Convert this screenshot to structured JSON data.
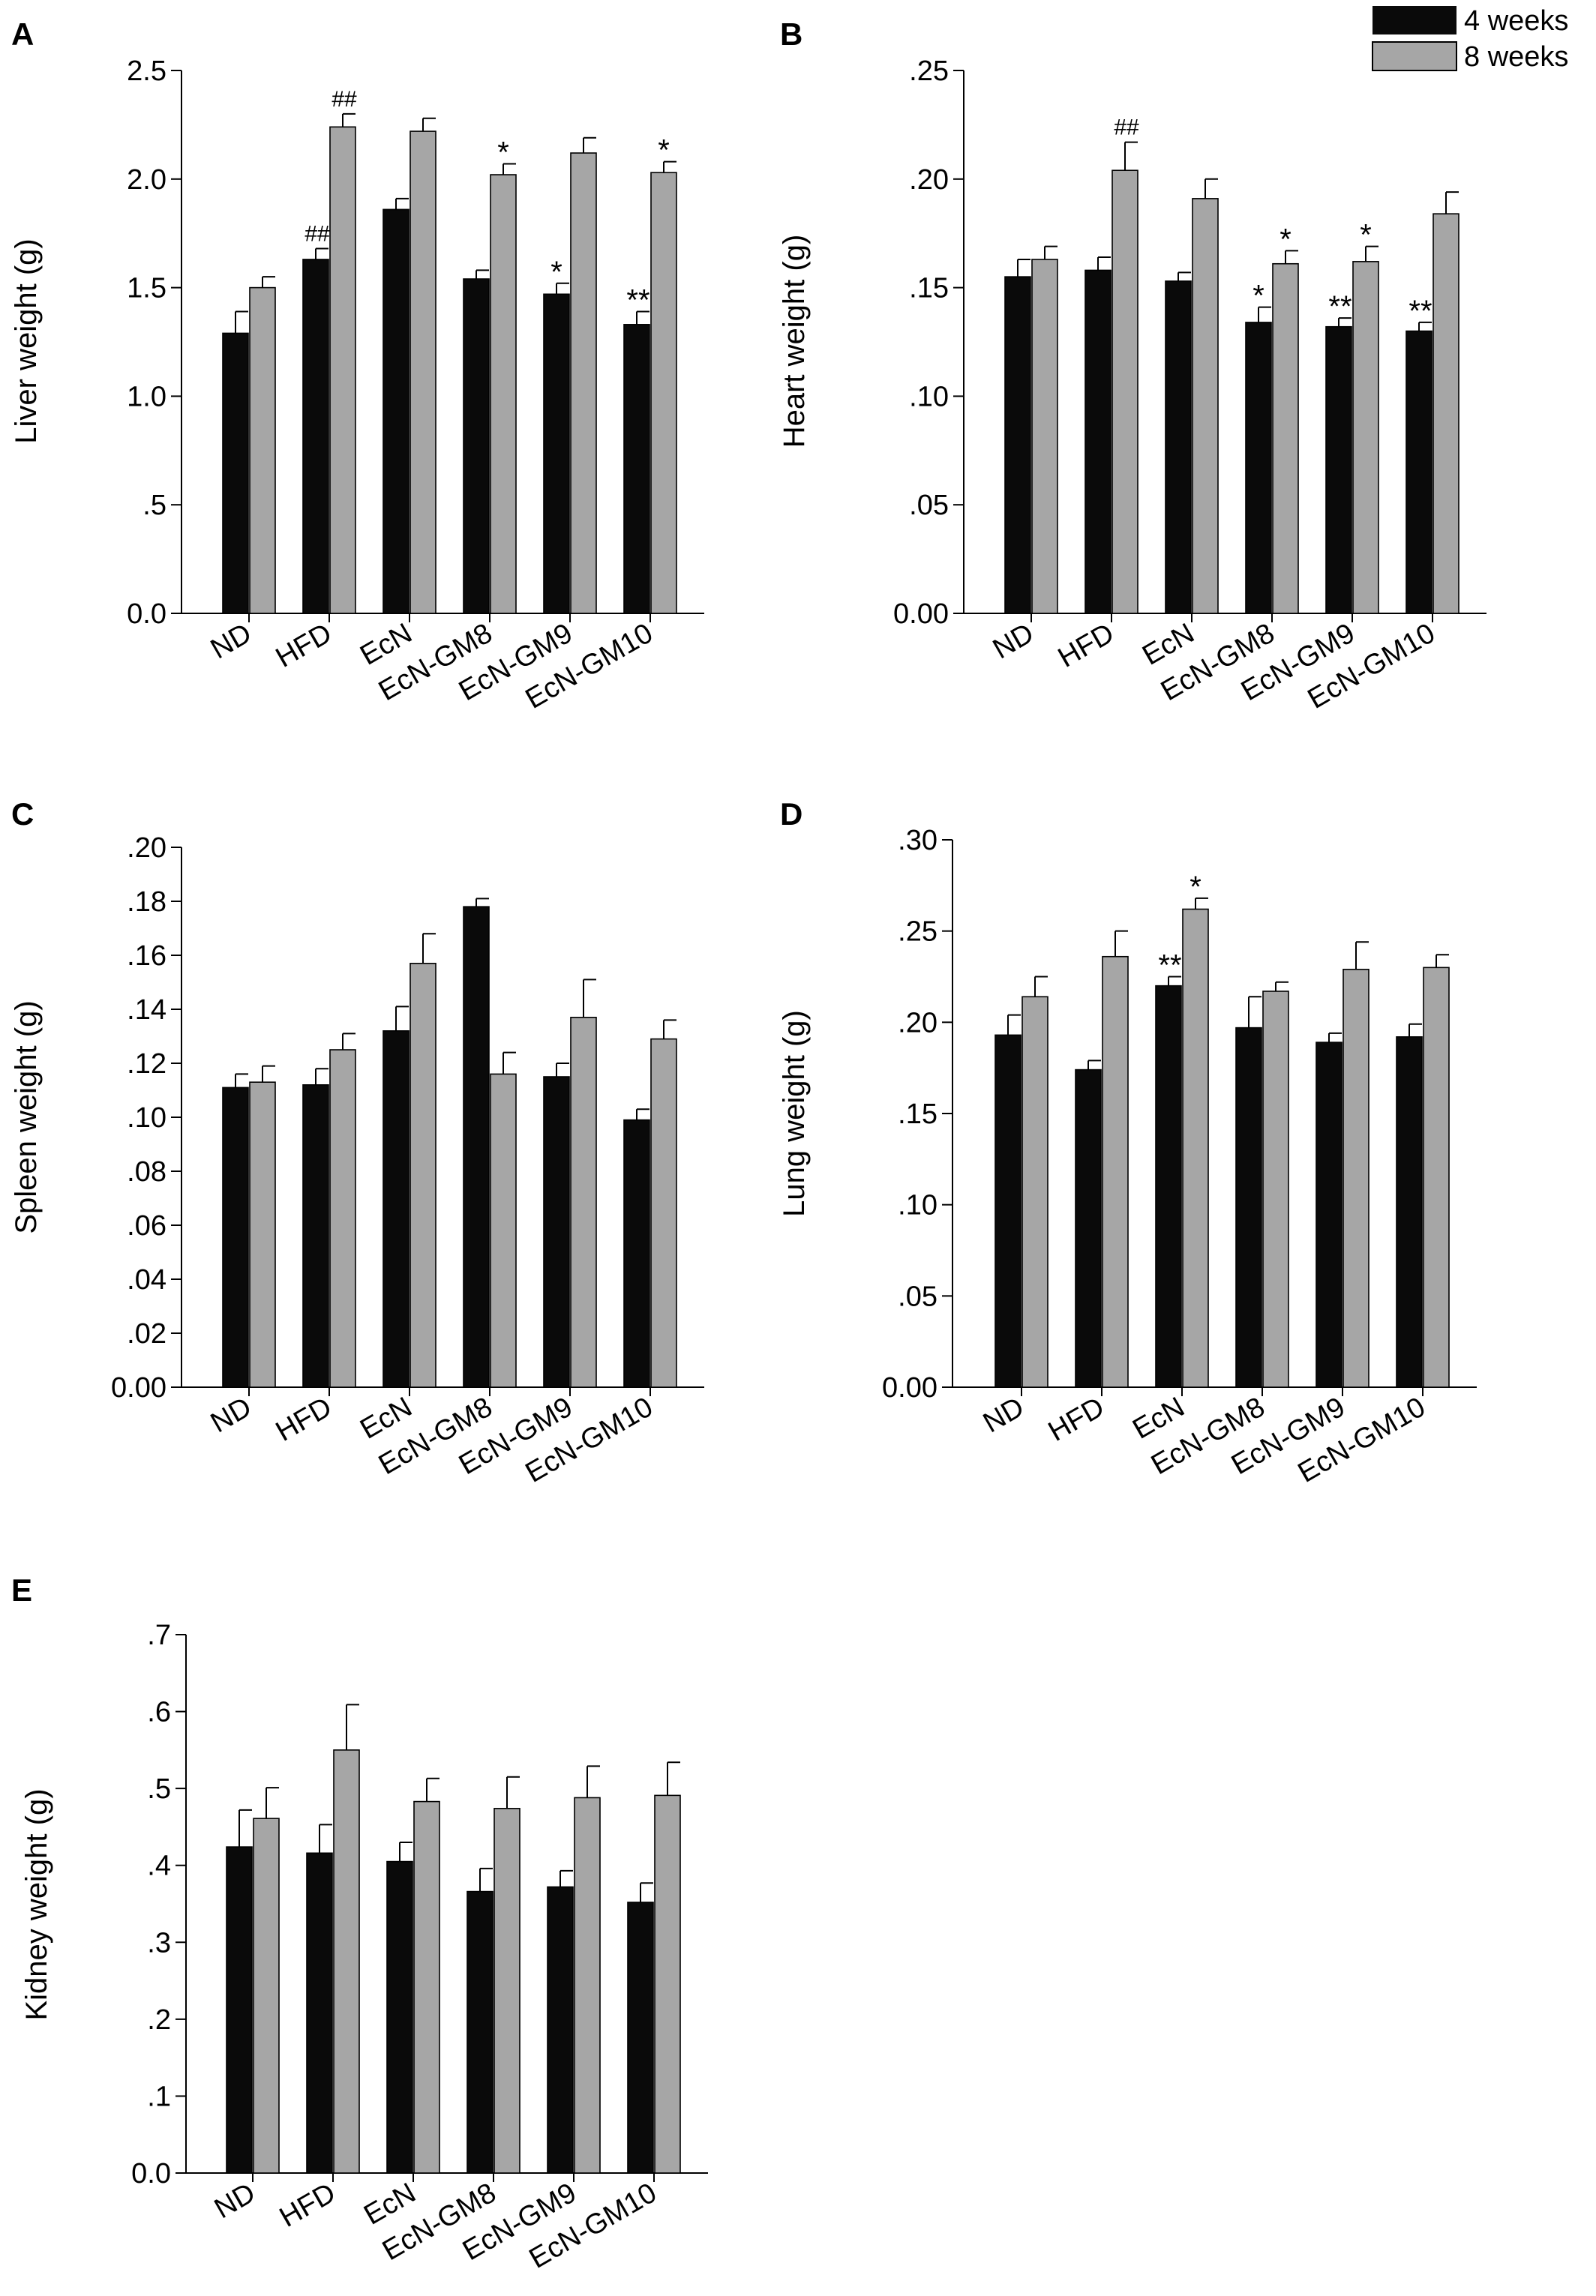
{
  "legend": {
    "position": "top-right",
    "entries": [
      {
        "label": "4 weeks",
        "color": "#0a0a0a"
      },
      {
        "label": "8 weeks",
        "color": "#a6a6a6"
      }
    ]
  },
  "colors": {
    "series_4w": "#0a0a0a",
    "series_8w": "#a6a6a6",
    "axis": "#000000"
  },
  "chart_data": [
    {
      "panel": "A",
      "type": "bar",
      "ylabel": "Liver weight (g)",
      "categories": [
        "ND",
        "HFD",
        "EcN",
        "EcN-GM8",
        "EcN-GM9",
        "EcN-GM10"
      ],
      "ylim": [
        0,
        2.5
      ],
      "yticks": [
        0,
        0.5,
        1.0,
        1.5,
        2.0,
        2.5
      ],
      "yticklabels": [
        "0.0",
        ".5",
        "1.0",
        "1.5",
        "2.0",
        "2.5"
      ],
      "series": [
        {
          "name": "4 weeks",
          "values": [
            1.29,
            1.63,
            1.86,
            1.54,
            1.47,
            1.33
          ],
          "errors": [
            0.1,
            0.05,
            0.05,
            0.04,
            0.05,
            0.06
          ],
          "annotations": [
            "",
            "##",
            "",
            "",
            "*",
            "**"
          ]
        },
        {
          "name": "8 weeks",
          "values": [
            1.5,
            2.24,
            2.22,
            2.02,
            2.12,
            2.03
          ],
          "errors": [
            0.05,
            0.06,
            0.06,
            0.05,
            0.07,
            0.05
          ],
          "annotations": [
            "",
            "##",
            "",
            "*",
            "",
            "*"
          ]
        }
      ]
    },
    {
      "panel": "B",
      "type": "bar",
      "ylabel": "Heart weight (g)",
      "categories": [
        "ND",
        "HFD",
        "EcN",
        "EcN-GM8",
        "EcN-GM9",
        "EcN-GM10"
      ],
      "ylim": [
        0,
        0.25
      ],
      "yticks": [
        0,
        0.05,
        0.1,
        0.15,
        0.2,
        0.25
      ],
      "yticklabels": [
        "0.00",
        ".05",
        ".10",
        ".15",
        ".20",
        ".25"
      ],
      "series": [
        {
          "name": "4 weeks",
          "values": [
            0.155,
            0.158,
            0.153,
            0.134,
            0.132,
            0.13
          ],
          "errors": [
            0.008,
            0.006,
            0.004,
            0.007,
            0.004,
            0.004
          ],
          "annotations": [
            "",
            "",
            "",
            "*",
            "**",
            "**"
          ]
        },
        {
          "name": "8 weeks",
          "values": [
            0.163,
            0.204,
            0.191,
            0.161,
            0.162,
            0.184
          ],
          "errors": [
            0.006,
            0.013,
            0.009,
            0.006,
            0.007,
            0.01
          ],
          "annotations": [
            "",
            "##",
            "",
            "*",
            "*",
            ""
          ]
        }
      ]
    },
    {
      "panel": "C",
      "type": "bar",
      "ylabel": "Spleen weight (g)",
      "categories": [
        "ND",
        "HFD",
        "EcN",
        "EcN-GM8",
        "EcN-GM9",
        "EcN-GM10"
      ],
      "ylim": [
        0,
        0.2
      ],
      "yticks": [
        0,
        0.02,
        0.04,
        0.06,
        0.08,
        0.1,
        0.12,
        0.14,
        0.16,
        0.18,
        0.2
      ],
      "yticklabels": [
        "0.00",
        ".02",
        ".04",
        ".06",
        ".08",
        ".10",
        ".12",
        ".14",
        ".16",
        ".18",
        ".20"
      ],
      "series": [
        {
          "name": "4 weeks",
          "values": [
            0.111,
            0.112,
            0.132,
            0.178,
            0.115,
            0.099
          ],
          "errors": [
            0.005,
            0.006,
            0.009,
            0.003,
            0.005,
            0.004
          ],
          "annotations": [
            "",
            "",
            "",
            "",
            "",
            ""
          ]
        },
        {
          "name": "8 weeks",
          "values": [
            0.113,
            0.125,
            0.157,
            0.116,
            0.137,
            0.129
          ],
          "errors": [
            0.006,
            0.006,
            0.011,
            0.008,
            0.014,
            0.007
          ],
          "annotations": [
            "",
            "",
            "",
            "",
            "",
            ""
          ]
        }
      ]
    },
    {
      "panel": "D",
      "type": "bar",
      "ylabel": "Lung weight (g)",
      "categories": [
        "ND",
        "HFD",
        "EcN",
        "EcN-GM8",
        "EcN-GM9",
        "EcN-GM10"
      ],
      "ylim": [
        0,
        0.3
      ],
      "yticks": [
        0,
        0.05,
        0.1,
        0.15,
        0.2,
        0.25,
        0.3
      ],
      "yticklabels": [
        "0.00",
        ".05",
        ".10",
        ".15",
        ".20",
        ".25",
        ".30"
      ],
      "series": [
        {
          "name": "4 weeks",
          "values": [
            0.193,
            0.174,
            0.22,
            0.197,
            0.189,
            0.192
          ],
          "errors": [
            0.011,
            0.005,
            0.005,
            0.017,
            0.005,
            0.007
          ],
          "annotations": [
            "",
            "",
            "**",
            "",
            "",
            ""
          ]
        },
        {
          "name": "8 weeks",
          "values": [
            0.214,
            0.236,
            0.262,
            0.217,
            0.229,
            0.23
          ],
          "errors": [
            0.011,
            0.014,
            0.006,
            0.005,
            0.015,
            0.007
          ],
          "annotations": [
            "",
            "",
            "*",
            "",
            "",
            ""
          ]
        }
      ]
    },
    {
      "panel": "E",
      "type": "bar",
      "ylabel": "Kidney weight (g)",
      "categories": [
        "ND",
        "HFD",
        "EcN",
        "EcN-GM8",
        "EcN-GM9",
        "EcN-GM10"
      ],
      "ylim": [
        0,
        0.7
      ],
      "yticks": [
        0,
        0.1,
        0.2,
        0.3,
        0.4,
        0.5,
        0.6,
        0.7
      ],
      "yticklabels": [
        "0.0",
        ".1",
        ".2",
        ".3",
        ".4",
        ".5",
        ".6",
        ".7"
      ],
      "series": [
        {
          "name": "4 weeks",
          "values": [
            0.424,
            0.416,
            0.405,
            0.366,
            0.372,
            0.352
          ],
          "errors": [
            0.048,
            0.037,
            0.025,
            0.03,
            0.021,
            0.025
          ],
          "annotations": [
            "",
            "",
            "",
            "",
            "",
            ""
          ]
        },
        {
          "name": "8 weeks",
          "values": [
            0.461,
            0.55,
            0.483,
            0.474,
            0.488,
            0.491
          ],
          "errors": [
            0.04,
            0.059,
            0.03,
            0.041,
            0.041,
            0.043
          ],
          "annotations": [
            "",
            "",
            "",
            "",
            "",
            ""
          ]
        }
      ]
    }
  ]
}
